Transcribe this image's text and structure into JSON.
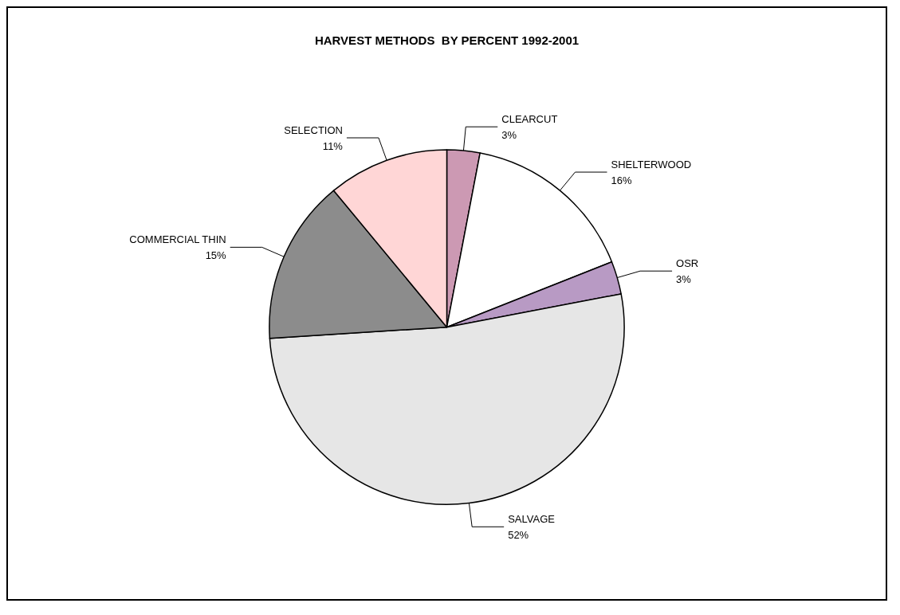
{
  "chart_data": {
    "type": "pie",
    "title": "HARVEST METHODS  BY PERCENT 1992-2001",
    "categories": [
      "CLEARCUT",
      "SHELTERWOOD",
      "OSR",
      "SALVAGE",
      "COMMERCIAL THIN",
      "SELECTION"
    ],
    "values": [
      3,
      16,
      3,
      52,
      15,
      11
    ],
    "colors": [
      "#cc99b3",
      "#ffffff",
      "#b89ac4",
      "#e6e6e6",
      "#8c8c8c",
      "#ffd6d6"
    ],
    "value_labels": [
      "3%",
      "16%",
      "3%",
      "52%",
      "15%",
      "11%"
    ],
    "legend": false
  }
}
